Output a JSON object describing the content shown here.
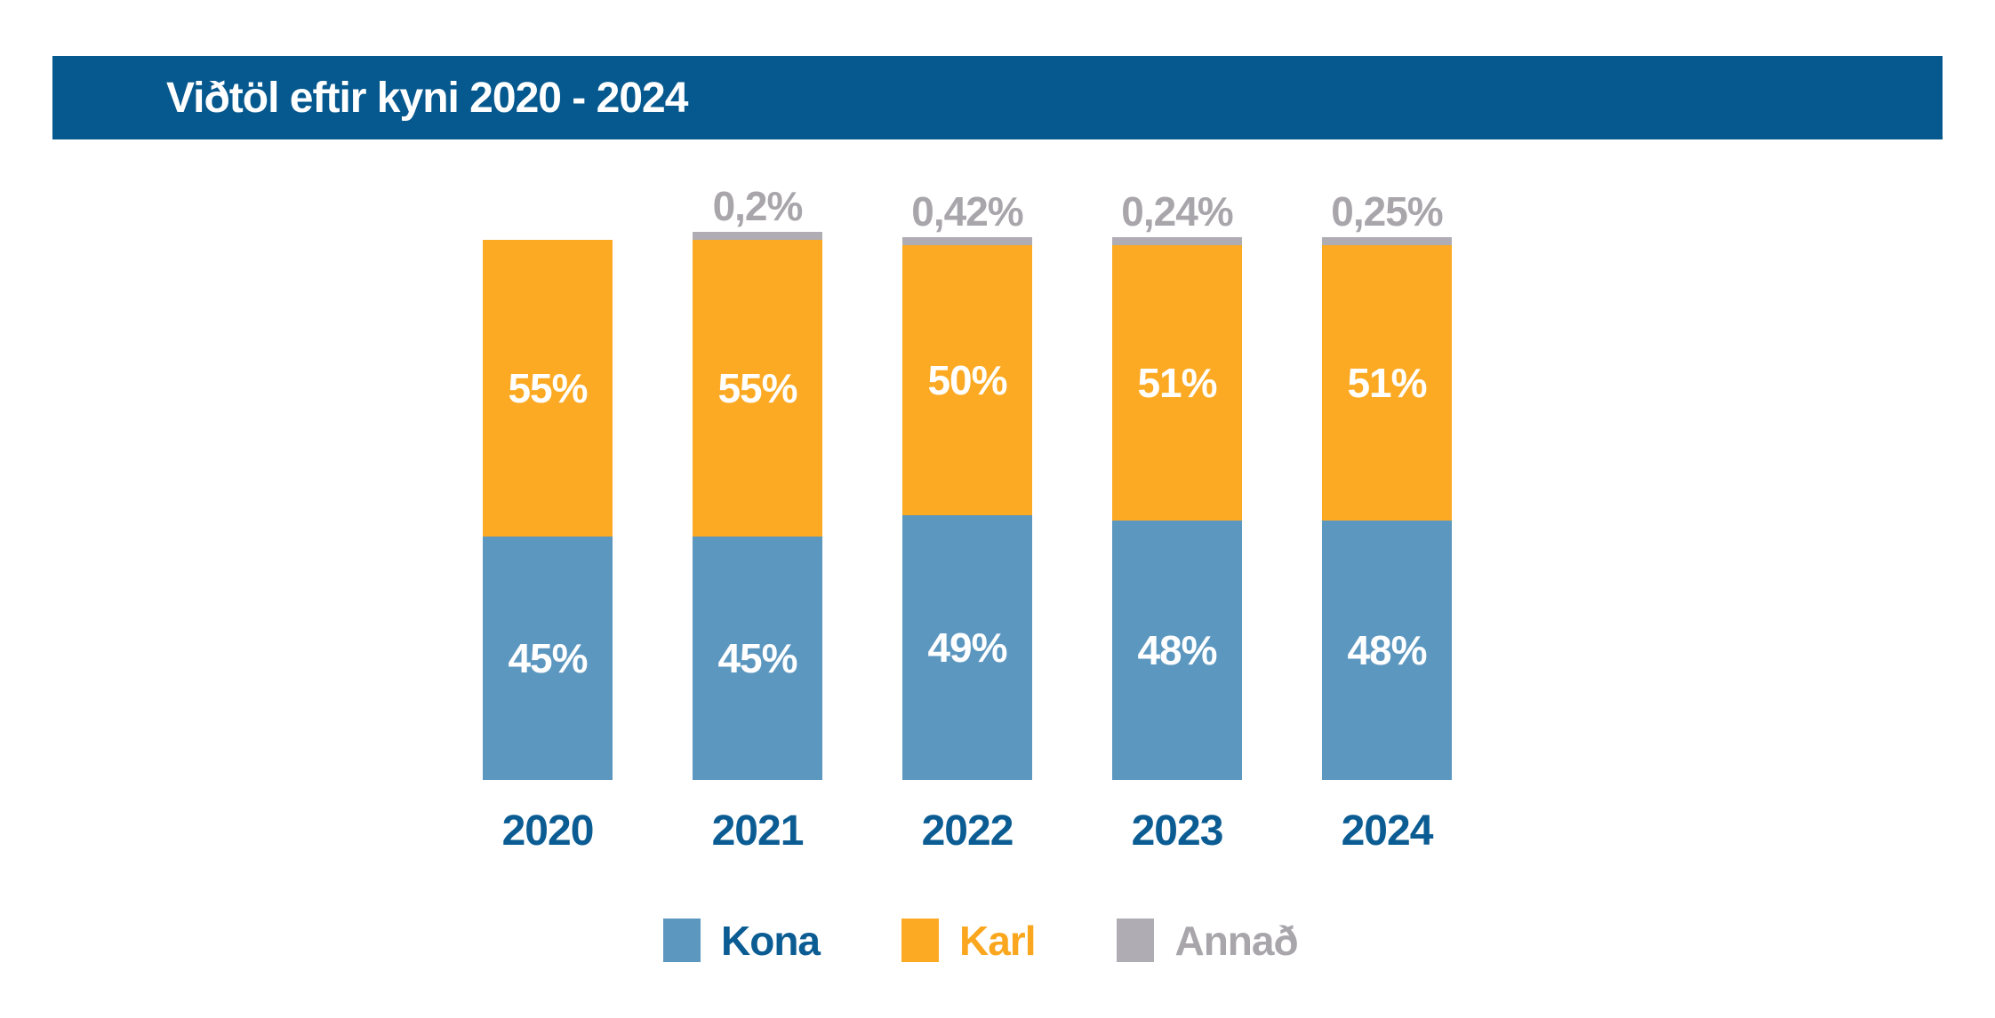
{
  "header": {
    "title": "Viðtöl eftir kyni 2020 - 2024"
  },
  "colors": {
    "header_background": "#06598F",
    "title_text": "#FFFFFF",
    "year_label_text": "#0B5C93",
    "segment_label_text": "#FFFFFF",
    "annad_label_text": "#A8A6AB"
  },
  "chart_data": {
    "type": "bar",
    "stacked": true,
    "title": "Viðtöl eftir kyni 2020 - 2024",
    "xlabel": "",
    "ylabel": "",
    "ylim": [
      0,
      100
    ],
    "grid": false,
    "legend_position": "bottom",
    "categories": [
      "2020",
      "2021",
      "2022",
      "2023",
      "2024"
    ],
    "series": [
      {
        "name": "Kona",
        "color": "#5C97C0",
        "label_text_color": "#0B5C93",
        "values": [
          45,
          45,
          49,
          48,
          48
        ],
        "labels": [
          "45%",
          "45%",
          "49%",
          "48%",
          "48%"
        ]
      },
      {
        "name": "Karl",
        "color": "#FCAA24",
        "label_text_color": "#FAA71F",
        "values": [
          55,
          55,
          50,
          51,
          51
        ],
        "labels": [
          "55%",
          "55%",
          "50%",
          "51%",
          "51%"
        ]
      },
      {
        "name": "Annað",
        "color": "#AFADB3",
        "label_text_color": "#A8A6AB",
        "values": [
          null,
          0.2,
          0.42,
          0.24,
          0.25
        ],
        "labels": [
          null,
          "0,2%",
          "0,42%",
          "0,24%",
          "0,25%"
        ]
      }
    ]
  }
}
